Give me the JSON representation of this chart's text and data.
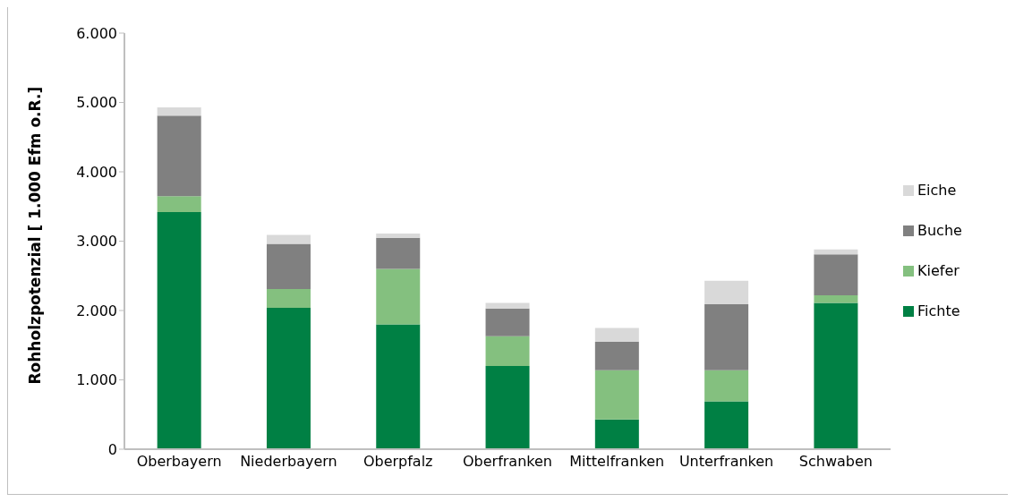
{
  "chart_data": {
    "type": "bar",
    "stacked": true,
    "ylabel": "Rohholzpotenzial [ 1.000 Efm o.R.]",
    "categories": [
      "Oberbayern",
      "Niederbayern",
      "Oberpfalz",
      "Oberfranken",
      "Mittelfranken",
      "Unterfranken",
      "Schwaben"
    ],
    "series": [
      {
        "name": "Fichte",
        "color": "#008044",
        "values": [
          3420,
          2040,
          1800,
          1200,
          430,
          690,
          2110
        ]
      },
      {
        "name": "Kiefer",
        "color": "#84c07f",
        "values": [
          230,
          270,
          800,
          430,
          710,
          450,
          110
        ]
      },
      {
        "name": "Buche",
        "color": "#808080",
        "values": [
          1160,
          650,
          450,
          400,
          410,
          950,
          590
        ]
      },
      {
        "name": "Eiche",
        "color": "#d9d9d9",
        "values": [
          120,
          130,
          60,
          80,
          200,
          340,
          70
        ]
      }
    ],
    "ylim": [
      0,
      6000
    ],
    "yticks": [
      {
        "value": 0,
        "label": "0"
      },
      {
        "value": 1000,
        "label": "1.000"
      },
      {
        "value": 2000,
        "label": "2.000"
      },
      {
        "value": 3000,
        "label": "3.000"
      },
      {
        "value": 4000,
        "label": "4.000"
      },
      {
        "value": 5000,
        "label": "5.000"
      },
      {
        "value": 6000,
        "label": "6.000"
      }
    ],
    "legend": "right"
  }
}
